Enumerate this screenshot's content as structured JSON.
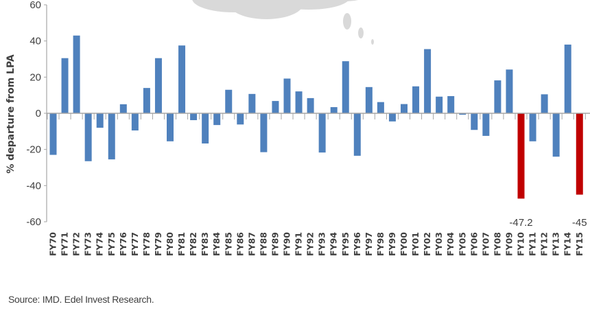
{
  "chart_data": {
    "type": "bar",
    "title": "",
    "xlabel": "",
    "ylabel": "% departure from LPA",
    "ylim": [
      -60,
      60
    ],
    "yticks": [
      60,
      40,
      20,
      0,
      -20,
      -40,
      -60
    ],
    "grid": false,
    "legend": null,
    "categories": [
      "FY70",
      "FY71",
      "FY72",
      "FY73",
      "FY74",
      "FY75",
      "FY76",
      "FY77",
      "FY78",
      "FY79",
      "FY80",
      "FY81",
      "FY82",
      "FY83",
      "FY84",
      "FY85",
      "FY86",
      "FY87",
      "FY88",
      "FY89",
      "FY90",
      "FY91",
      "FY92",
      "FY93",
      "FY94",
      "FY95",
      "FY96",
      "FY97",
      "FY98",
      "FY99",
      "FY00",
      "FY01",
      "FY02",
      "FY03",
      "FY04",
      "FY05",
      "FY06",
      "FY07",
      "FY08",
      "FY09",
      "FY10",
      "FY11",
      "FY12",
      "FY13",
      "FY14",
      "FY15"
    ],
    "values": [
      -23,
      30.5,
      43,
      -26.5,
      -8,
      -25.5,
      5,
      -9.5,
      14,
      30.5,
      -15.5,
      37.5,
      -3.8,
      -16.7,
      -6.5,
      13,
      -6.2,
      10.7,
      -21.5,
      6.8,
      19.2,
      12.1,
      8.4,
      -21.7,
      3.4,
      28.8,
      -23.5,
      14.5,
      6.2,
      -4.5,
      5.1,
      14.9,
      35.5,
      9.2,
      9.5,
      -0.8,
      -9.2,
      -12.5,
      18.2,
      24.2,
      -47.2,
      -15.5,
      10.5,
      -24,
      38,
      -45
    ],
    "highlighted": [
      "FY10",
      "FY15"
    ],
    "annotations": [
      {
        "category": "FY10",
        "text": "-47.2"
      },
      {
        "category": "FY15",
        "text": "-45"
      }
    ],
    "colors": {
      "bar": "#4f81bd",
      "highlight": "#c00000",
      "axis": "#a6a6a6",
      "text": "#404040",
      "cloud": "#d9d9d9"
    }
  },
  "footer": {
    "source": "Source: IMD. Edel Invest Research."
  },
  "decoration": {
    "icon": "thought-cloud-icon"
  }
}
